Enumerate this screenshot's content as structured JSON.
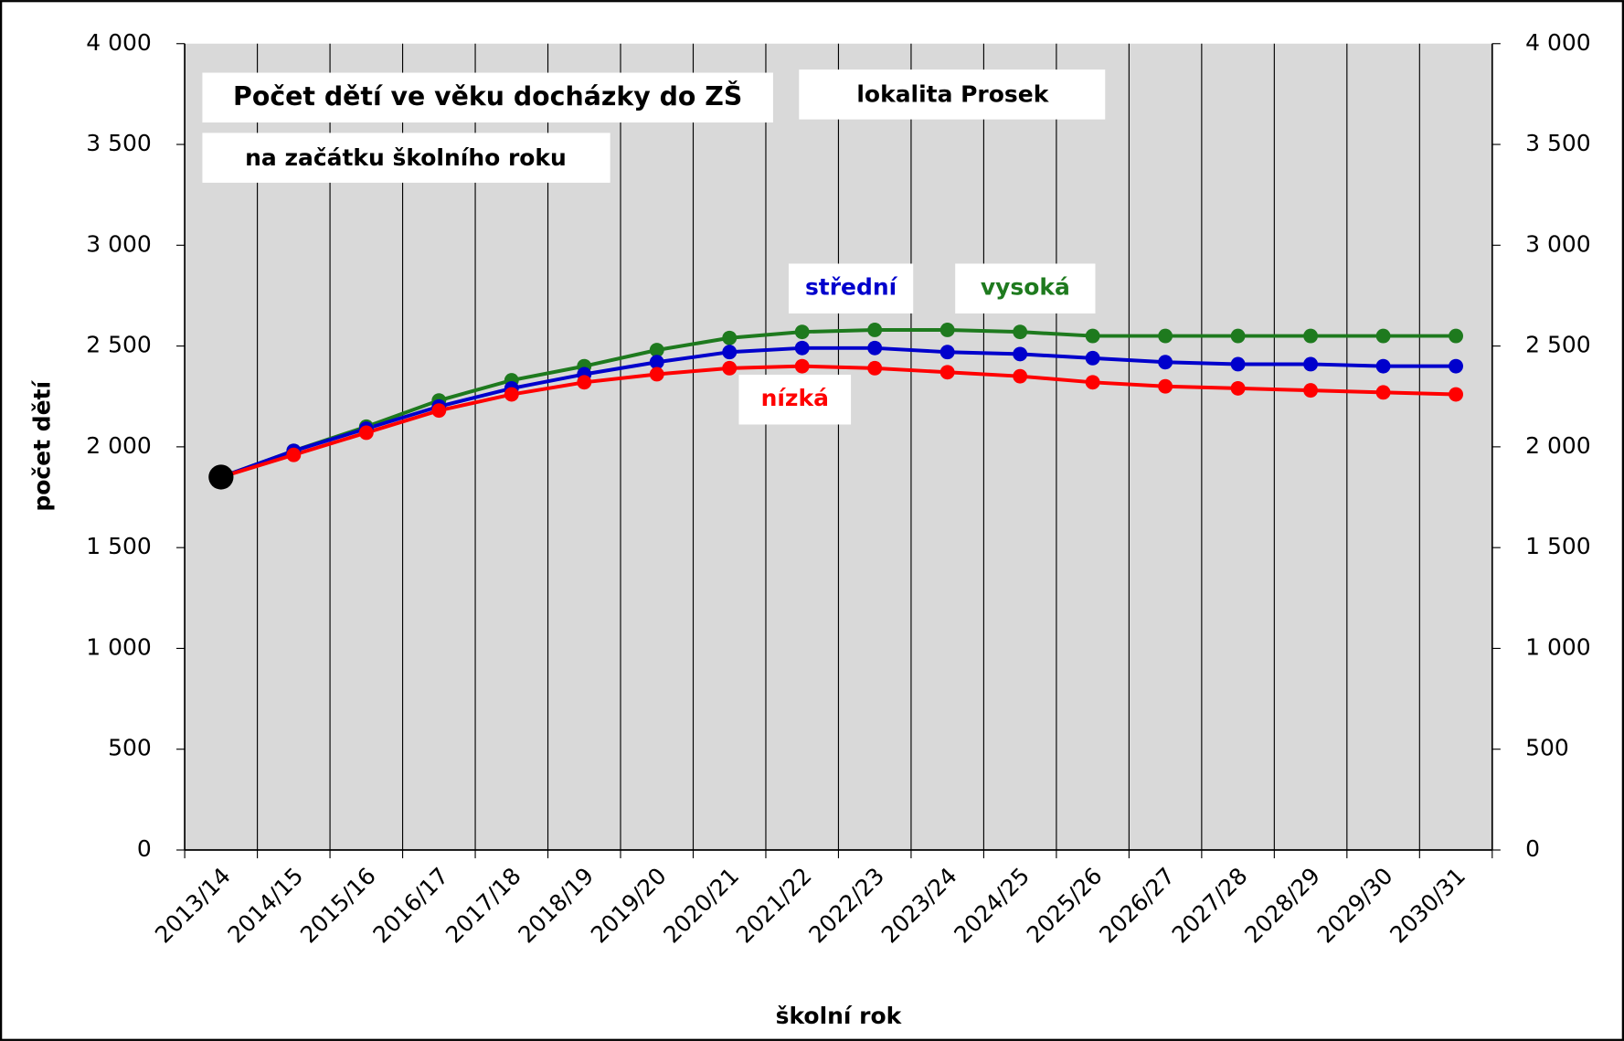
{
  "chart_data": {
    "type": "line",
    "title": "Počet dětí ve věku docházky do ZŠ",
    "subtitle": "na začátku školního roku",
    "annotation": "lokalita Prosek",
    "x_label": "školní rok",
    "y_label": "počet dětí",
    "categories": [
      "2013/14",
      "2014/15",
      "2015/16",
      "2016/17",
      "2017/18",
      "2018/19",
      "2019/20",
      "2020/21",
      "2021/22",
      "2022/23",
      "2023/24",
      "2024/25",
      "2025/26",
      "2026/27",
      "2027/28",
      "2028/29",
      "2029/30",
      "2030/31"
    ],
    "series": [
      {
        "name": "vysoká",
        "color": "#1e7a1e",
        "values": [
          1850,
          1980,
          2100,
          2230,
          2330,
          2400,
          2480,
          2540,
          2570,
          2580,
          2580,
          2570,
          2550,
          2550,
          2550,
          2550,
          2550,
          2550
        ]
      },
      {
        "name": "střední",
        "color": "#0000cc",
        "values": [
          1850,
          1980,
          2090,
          2200,
          2290,
          2360,
          2420,
          2470,
          2490,
          2490,
          2470,
          2460,
          2440,
          2420,
          2410,
          2410,
          2400,
          2400
        ]
      },
      {
        "name": "nízká",
        "color": "#ff0000",
        "values": [
          1850,
          1960,
          2070,
          2180,
          2260,
          2320,
          2360,
          2390,
          2400,
          2390,
          2370,
          2350,
          2320,
          2300,
          2290,
          2280,
          2270,
          2260
        ]
      }
    ],
    "start_marker_color": "#000000",
    "ylim": [
      0,
      4000
    ],
    "yticks": [
      0,
      500,
      {
        "value": 1000,
        "label": "1 000"
      },
      {
        "value": 1500,
        "label": "1 500"
      },
      {
        "value": 2000,
        "label": "2 000"
      },
      {
        "value": 2500,
        "label": "2 500"
      },
      {
        "value": 3000,
        "label": "3 000"
      },
      {
        "value": 3500,
        "label": "3 500"
      },
      {
        "value": 4000,
        "label": "4 000"
      }
    ],
    "y2lim": [
      0,
      4000
    ],
    "y2ticks": [
      0,
      500,
      {
        "value": 1000,
        "label": "1 000"
      },
      {
        "value": 1500,
        "label": "1 500"
      },
      {
        "value": 2000,
        "label": "2 000"
      },
      {
        "value": 2500,
        "label": "2 500"
      },
      {
        "value": 3000,
        "label": "3 000"
      },
      {
        "value": 3500,
        "label": "3 500"
      },
      {
        "value": 4000,
        "label": "4 000"
      }
    ],
    "grid": "x",
    "plot_background": "#d9d9d9"
  }
}
